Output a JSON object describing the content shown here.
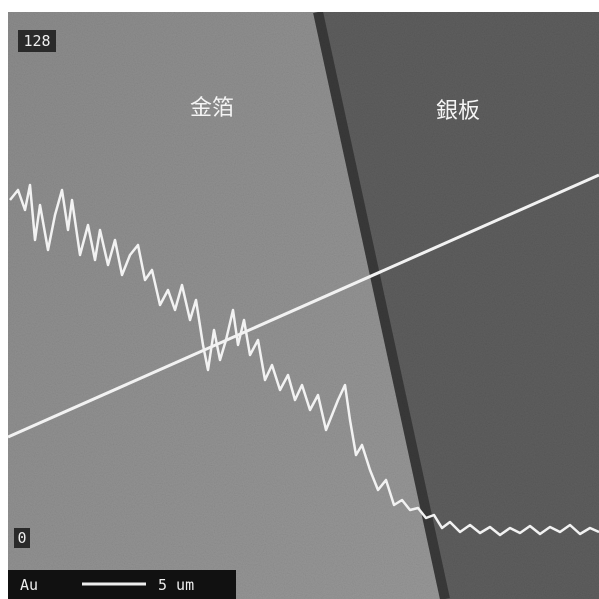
{
  "labels": {
    "max": "128",
    "min": "0",
    "left_region": "金箔",
    "right_region": "銀板"
  },
  "scale_bar": {
    "element": "Au",
    "length": "5 um"
  }
}
